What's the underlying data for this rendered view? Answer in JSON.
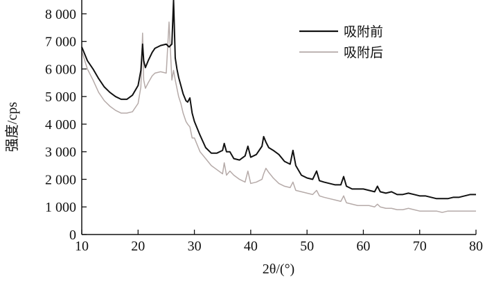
{
  "chart_data": {
    "type": "line",
    "ylabel": "强度/cps",
    "xlabel": "2θ/(°)",
    "xlim": [
      10,
      80
    ],
    "ylim": [
      0,
      8500
    ],
    "xticks": [
      10,
      20,
      30,
      40,
      50,
      60,
      70,
      80
    ],
    "xtick_labels": [
      "10",
      "20",
      "30",
      "40",
      "50",
      "60",
      "70",
      "80"
    ],
    "yticks": [
      0,
      1000,
      2000,
      3000,
      4000,
      5000,
      6000,
      7000,
      8000
    ],
    "ytick_labels": [
      "0",
      "1 000",
      "2 000",
      "3 000",
      "4 000",
      "5 000",
      "6 000",
      "7 000",
      "8 000"
    ],
    "legend_position": "top-right",
    "series": [
      {
        "name": "吸附前",
        "color": "#111111",
        "x": [
          10,
          11,
          12,
          13,
          14,
          15,
          16,
          17,
          18,
          19,
          20,
          20.5,
          20.8,
          21.0,
          21.3,
          21.8,
          22.5,
          23,
          24,
          25,
          25.5,
          26.0,
          26.3,
          26.6,
          26.9,
          27.2,
          27.6,
          28,
          28.5,
          28.8,
          29.2,
          29.6,
          30,
          31,
          32,
          33,
          34,
          35,
          35.3,
          35.7,
          36.3,
          37,
          38,
          39,
          39.5,
          40,
          41,
          42,
          42.3,
          42.7,
          43.2,
          44,
          45,
          46,
          47,
          47.5,
          48,
          49,
          50,
          51,
          51.7,
          52.2,
          53,
          54,
          55,
          56,
          56.5,
          57,
          58,
          59,
          60,
          61,
          62,
          62.5,
          63,
          64,
          65,
          66,
          67,
          68,
          69,
          70,
          71,
          72,
          73,
          74,
          75,
          76,
          77,
          78,
          79,
          80
        ],
        "y": [
          6800,
          6300,
          6000,
          5650,
          5350,
          5150,
          5000,
          4900,
          4900,
          5050,
          5400,
          5950,
          6900,
          6300,
          6050,
          6300,
          6600,
          6750,
          6850,
          6900,
          6800,
          6900,
          8500,
          6400,
          6000,
          5700,
          5400,
          5100,
          4850,
          4800,
          4950,
          4400,
          4100,
          3600,
          3150,
          2950,
          2950,
          3050,
          3300,
          3000,
          3000,
          2750,
          2700,
          2850,
          3200,
          2800,
          2900,
          3200,
          3550,
          3350,
          3150,
          3050,
          2900,
          2650,
          2550,
          3050,
          2500,
          2150,
          2050,
          2000,
          2300,
          1950,
          1900,
          1850,
          1800,
          1800,
          2100,
          1750,
          1650,
          1650,
          1650,
          1600,
          1550,
          1750,
          1550,
          1500,
          1550,
          1450,
          1450,
          1500,
          1450,
          1400,
          1400,
          1350,
          1300,
          1300,
          1300,
          1350,
          1350,
          1400,
          1450,
          1450
        ]
      },
      {
        "name": "吸附后",
        "color": "#b5aaa8",
        "x": [
          10,
          11,
          12,
          13,
          14,
          15,
          16,
          17,
          18,
          19,
          20,
          20.5,
          20.8,
          21.0,
          21.3,
          21.8,
          22.5,
          23,
          24,
          25,
          25.5,
          26.0,
          26.3,
          26.6,
          26.9,
          27.2,
          27.6,
          28,
          28.5,
          28.8,
          29.2,
          29.6,
          30,
          31,
          32,
          33,
          34,
          35,
          35.3,
          35.7,
          36.3,
          37,
          38,
          39,
          39.5,
          40,
          41,
          42,
          42.3,
          42.7,
          43.2,
          44,
          45,
          46,
          47,
          47.5,
          48,
          49,
          50,
          51,
          51.7,
          52.2,
          53,
          54,
          55,
          56,
          56.5,
          57,
          58,
          59,
          60,
          61,
          62,
          62.5,
          63,
          64,
          65,
          66,
          67,
          68,
          69,
          70,
          71,
          72,
          73,
          74,
          75,
          76,
          77,
          78,
          79,
          80
        ],
        "y": [
          6650,
          6000,
          5600,
          5150,
          4850,
          4650,
          4500,
          4400,
          4400,
          4450,
          4750,
          5350,
          7300,
          5600,
          5300,
          5500,
          5750,
          5850,
          5900,
          5850,
          7700,
          5600,
          5950,
          5600,
          5300,
          5000,
          4750,
          4400,
          4100,
          4000,
          3900,
          3500,
          3500,
          3000,
          2750,
          2500,
          2350,
          2200,
          2600,
          2150,
          2300,
          2150,
          2000,
          1900,
          2300,
          1850,
          1900,
          2000,
          2200,
          2400,
          2250,
          2050,
          1850,
          1750,
          1700,
          1900,
          1600,
          1550,
          1500,
          1450,
          1600,
          1400,
          1350,
          1300,
          1250,
          1200,
          1400,
          1150,
          1100,
          1050,
          1050,
          1050,
          1000,
          1100,
          1000,
          950,
          950,
          900,
          900,
          950,
          900,
          850,
          850,
          850,
          850,
          800,
          850,
          850,
          850,
          850,
          850,
          850
        ]
      }
    ]
  }
}
